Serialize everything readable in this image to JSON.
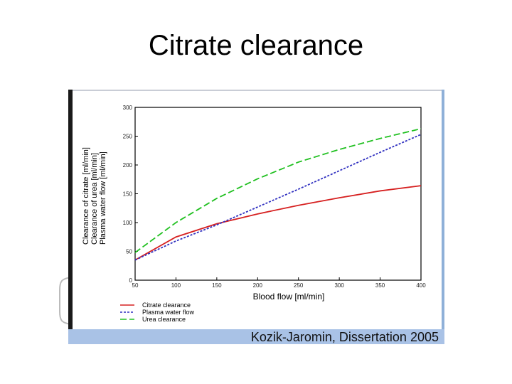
{
  "slide": {
    "title": "Citrate clearance",
    "credit": "Kozik-Jaromin, Dissertation 2005"
  },
  "chart_data": {
    "type": "line",
    "title": "",
    "xlabel": "Blood flow [ml/min]",
    "ylabel_lines": [
      "Clearance of citrate [ml/min]",
      "Clearance of urea [ml/min]",
      "Plasma water flow [ml/min]"
    ],
    "xlim": [
      50,
      400
    ],
    "ylim": [
      0,
      300
    ],
    "x_ticks": [
      50,
      100,
      150,
      200,
      250,
      300,
      350,
      400
    ],
    "y_ticks": [
      0,
      50,
      100,
      150,
      200,
      250,
      300
    ],
    "legend_position": "bottom-left",
    "grid": false,
    "x": [
      50,
      100,
      150,
      200,
      250,
      300,
      350,
      400
    ],
    "series": [
      {
        "name": "Citrate clearance",
        "color": "#d62020",
        "dash": "solid",
        "values": [
          35,
          75,
          98,
          115,
          130,
          143,
          155,
          164
        ]
      },
      {
        "name": "Plasma water flow",
        "color": "#3030c0",
        "dash": "dotted",
        "values": [
          35,
          68,
          96,
          127,
          158,
          190,
          222,
          253
        ]
      },
      {
        "name": "Urea clearance",
        "color": "#20c020",
        "dash": "dashed",
        "values": [
          48,
          100,
          142,
          176,
          205,
          227,
          246,
          263
        ]
      }
    ]
  }
}
